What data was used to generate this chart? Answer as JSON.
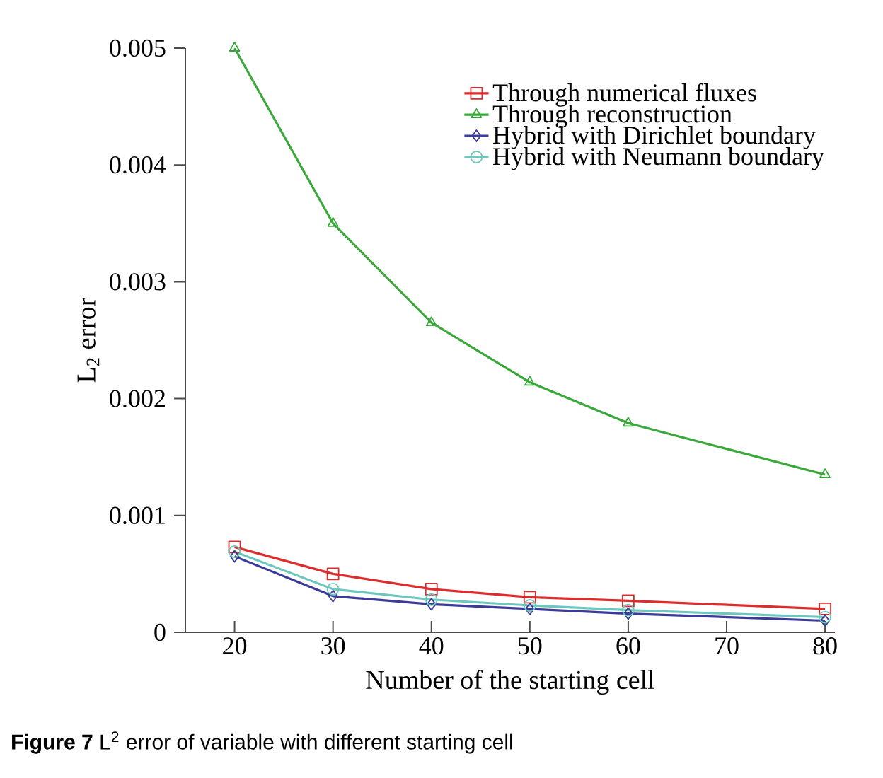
{
  "chart_data": {
    "type": "line",
    "xlabel": "Number of the starting cell",
    "ylabel": "L$_{2}$ error",
    "annotations": [
      "**Figure 7** L$^{2}$ error of variable with different starting cell"
    ],
    "xlim": [
      15,
      81
    ],
    "xticks": [
      20,
      30,
      40,
      50,
      60,
      70,
      80
    ],
    "ylim": [
      0,
      0.005
    ],
    "yticks": [
      0,
      0.001,
      0.002,
      0.003,
      0.004,
      0.005
    ],
    "grid": false,
    "legend": "top right",
    "line_style": "solid",
    "series": [
      {
        "name": "Through numerical fluxes",
        "color": "#dd2c2c",
        "marker": "square",
        "x": [
          20,
          30,
          40,
          50,
          60,
          80
        ],
        "values": [
          0.00073,
          0.0005,
          0.00037,
          0.0003,
          0.00027,
          0.0002
        ]
      },
      {
        "name": "Through reconstruction",
        "color": "#3aa83a",
        "marker": "triangle",
        "x": [
          20,
          30,
          40,
          50,
          60,
          80
        ],
        "values": [
          0.005,
          0.0035,
          0.00265,
          0.00214,
          0.00179,
          0.00135
        ]
      },
      {
        "name": "Hybrid with Dirichlet boundary",
        "color": "#3c3c98",
        "marker": "diamond",
        "x": [
          20,
          30,
          40,
          50,
          60,
          80
        ],
        "values": [
          0.00065,
          0.00031,
          0.00024,
          0.0002,
          0.00016,
          0.0001
        ]
      },
      {
        "name": "Hybrid with Neumann boundary",
        "color": "#6cc8be",
        "marker": "circle",
        "x": [
          20,
          30,
          40,
          50,
          60,
          80
        ],
        "values": [
          0.00069,
          0.00037,
          0.00028,
          0.00023,
          0.00019,
          0.00013
        ]
      }
    ]
  }
}
